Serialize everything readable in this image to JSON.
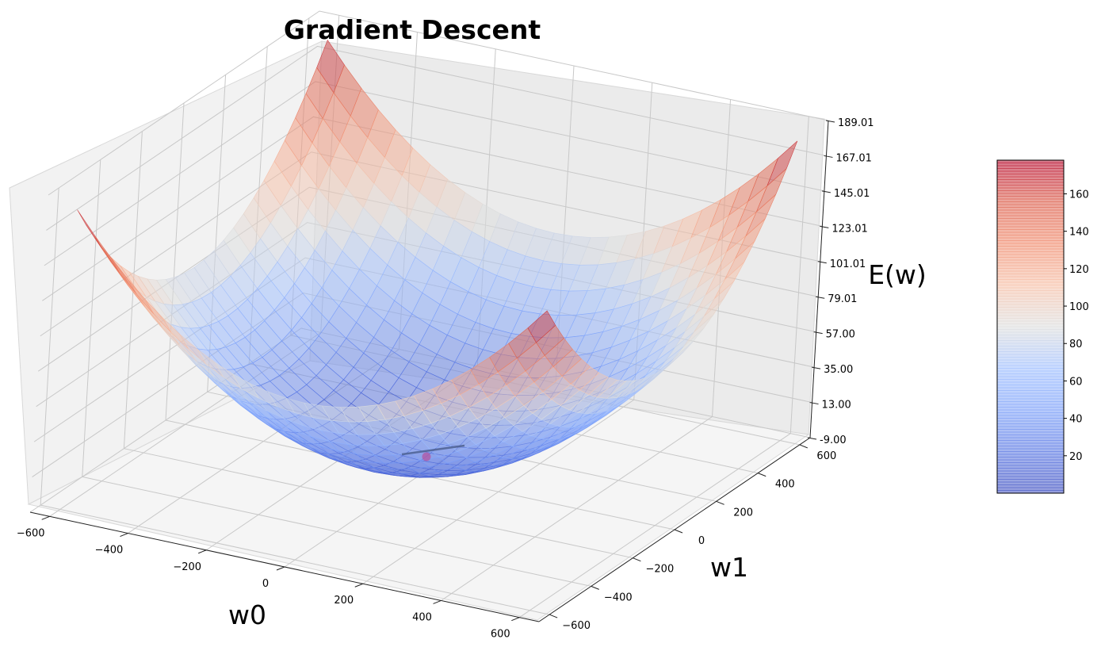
{
  "chart_data": {
    "type": "surface",
    "title": "Gradient Descent",
    "xlabel": "w0",
    "ylabel": "w1",
    "zlabel": "E(w)",
    "x_ticks": [
      "−600",
      "−400",
      "−200",
      "0",
      "200",
      "400",
      "600"
    ],
    "y_ticks": [
      "−600",
      "−400",
      "−200",
      "0",
      "200",
      "400",
      "600"
    ],
    "z_ticks": [
      "-9.00",
      "13.00",
      "35.00",
      "57.00",
      "79.01",
      "101.01",
      "123.01",
      "145.01",
      "167.01",
      "189.01"
    ],
    "xlim": [
      -650,
      650
    ],
    "ylim": [
      -650,
      650
    ],
    "zlim": [
      -9,
      189.01
    ],
    "surface": {
      "function": "quadratic bowl",
      "min_value": 0,
      "max_value": 178,
      "colormap": "coolwarm",
      "alpha": 0.5
    },
    "descent_path": {
      "color": "#4a5d8c",
      "end_marker_color": "#b05aa8"
    },
    "colorbar": {
      "min": 0,
      "max": 178,
      "ticks": [
        "20",
        "40",
        "60",
        "80",
        "100",
        "120",
        "140",
        "160"
      ],
      "tick_values": [
        20,
        40,
        60,
        80,
        100,
        120,
        140,
        160
      ]
    },
    "grid": true
  }
}
